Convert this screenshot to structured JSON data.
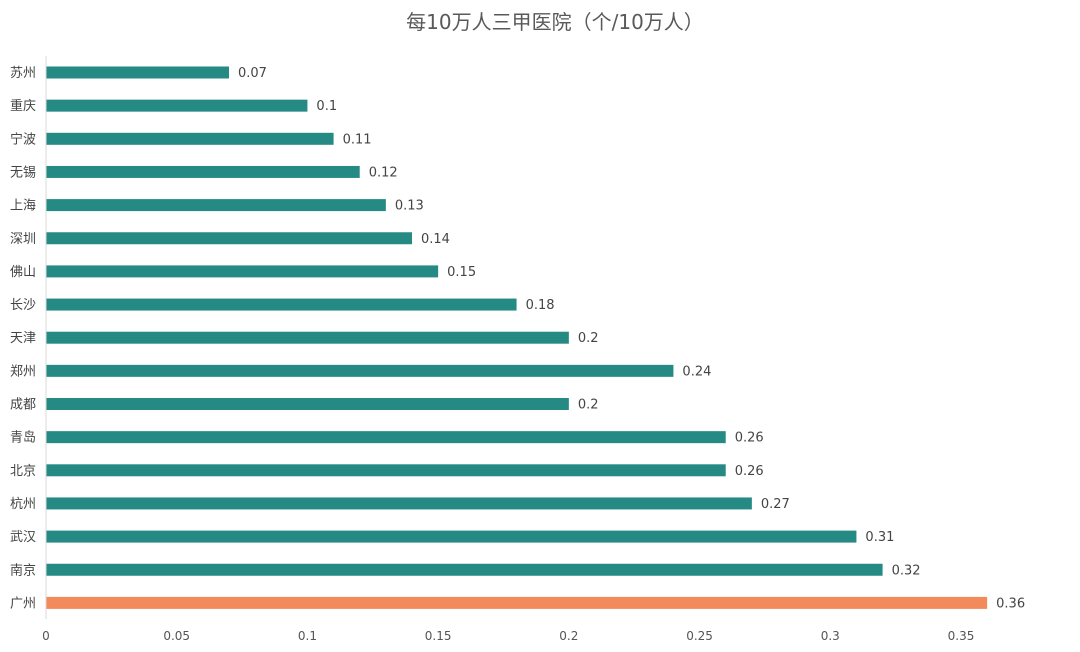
{
  "chart_data": {
    "type": "bar",
    "orientation": "horizontal",
    "title": "每10万人三甲医院（个/10万人）",
    "xlabel": "",
    "ylabel": "",
    "categories": [
      "苏州",
      "重庆",
      "宁波",
      "无锡",
      "上海",
      "深圳",
      "佛山",
      "长沙",
      "天津",
      "郑州",
      "成都",
      "青岛",
      "北京",
      "杭州",
      "武汉",
      "南京",
      "广州"
    ],
    "values": [
      0.07,
      0.1,
      0.11,
      0.12,
      0.13,
      0.14,
      0.15,
      0.18,
      0.2,
      0.24,
      0.2,
      0.26,
      0.26,
      0.27,
      0.31,
      0.32,
      0.36
    ],
    "value_labels": [
      "0.07",
      "0.1",
      "0.11",
      "0.12",
      "0.13",
      "0.14",
      "0.15",
      "0.18",
      "0.2",
      "0.24",
      "0.2",
      "0.26",
      "0.26",
      "0.27",
      "0.31",
      "0.32",
      "0.36"
    ],
    "xlim": [
      0,
      0.35
    ],
    "xticks": [
      0,
      0.05,
      0.1,
      0.15,
      0.2,
      0.25,
      0.3,
      0.35
    ],
    "xtick_labels": [
      "0",
      "0.05",
      "0.1",
      "0.15",
      "0.2",
      "0.25",
      "0.3",
      "0.35"
    ],
    "grid": false,
    "legend": "none",
    "colors": {
      "bar": "#268a84",
      "highlight": "#f38a5b",
      "axis": "#d9d9d9"
    },
    "highlight_category": "广州"
  }
}
